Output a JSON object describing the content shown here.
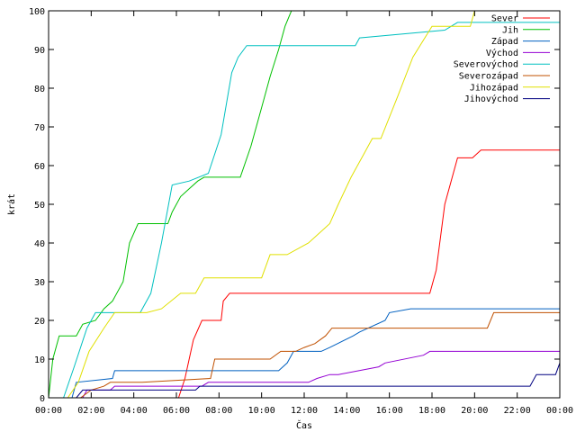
{
  "chart_data": {
    "type": "line",
    "title": "",
    "xlabel": "Čas",
    "ylabel": "krát",
    "xlim": [
      0,
      24
    ],
    "ylim": [
      0,
      100
    ],
    "x_ticks": [
      {
        "value": 0,
        "label": "00:00"
      },
      {
        "value": 2,
        "label": "02:00"
      },
      {
        "value": 4,
        "label": "04:00"
      },
      {
        "value": 6,
        "label": "06:00"
      },
      {
        "value": 8,
        "label": "08:00"
      },
      {
        "value": 10,
        "label": "10:00"
      },
      {
        "value": 12,
        "label": "12:00"
      },
      {
        "value": 14,
        "label": "14:00"
      },
      {
        "value": 16,
        "label": "16:00"
      },
      {
        "value": 18,
        "label": "18:00"
      },
      {
        "value": 20,
        "label": "20:00"
      },
      {
        "value": 22,
        "label": "22:00"
      },
      {
        "value": 24,
        "label": "00:00"
      }
    ],
    "y_ticks": [
      0,
      10,
      20,
      30,
      40,
      50,
      60,
      70,
      80,
      90,
      100
    ],
    "grid": false,
    "legend_position": "top-right",
    "series": [
      {
        "name": "Sever",
        "color": "#ff0000",
        "x": [
          0,
          6.1,
          6.4,
          6.8,
          7.2,
          8.1,
          8.2,
          8.5,
          17.9,
          18.2,
          18.6,
          19.2,
          19.9,
          20.3,
          24
        ],
        "y": [
          0,
          0,
          5,
          15,
          20,
          20,
          25,
          27,
          27,
          33,
          50,
          62,
          62,
          64,
          64
        ]
      },
      {
        "name": "Jih",
        "color": "#00c000",
        "x": [
          0,
          0.2,
          0.5,
          1.3,
          1.6,
          2.2,
          2.6,
          3.0,
          3.5,
          3.8,
          4.2,
          5.6,
          5.8,
          6.2,
          6.6,
          7.0,
          7.3,
          8.3,
          9.0,
          9.5,
          10.0,
          10.4,
          10.8,
          11.1,
          11.4,
          24
        ],
        "y": [
          0,
          10,
          16,
          16,
          19,
          20,
          23,
          25,
          30,
          40,
          45,
          45,
          48,
          52,
          54,
          56,
          57,
          57,
          57,
          65,
          75,
          83,
          90,
          96,
          100,
          100
        ]
      },
      {
        "name": "Západ",
        "color": "#0060c0",
        "x": [
          0,
          1.1,
          1.3,
          3.0,
          3.1,
          10.8,
          11.2,
          11.5,
          12.8,
          13.2,
          14.3,
          14.6,
          15.8,
          16.0,
          17.0,
          24
        ],
        "y": [
          0,
          0,
          4,
          5,
          7,
          7,
          9,
          12,
          12,
          13,
          16,
          17,
          20,
          22,
          23,
          23
        ]
      },
      {
        "name": "Východ",
        "color": "#9400d3",
        "x": [
          0,
          1.6,
          1.8,
          2.9,
          3.1,
          7.2,
          7.5,
          12.2,
          12.6,
          13.2,
          13.6,
          15.5,
          15.8,
          17.6,
          17.9,
          24
        ],
        "y": [
          0,
          0,
          2,
          2,
          3,
          3,
          4,
          4,
          5,
          6,
          6,
          8,
          9,
          11,
          12,
          12
        ]
      },
      {
        "name": "Severovýchod",
        "color": "#00c0c0",
        "x": [
          0,
          0.7,
          1.2,
          1.8,
          2.2,
          4.3,
          4.8,
          5.3,
          5.8,
          6.6,
          7.5,
          8.1,
          8.6,
          8.9,
          9.3,
          14.4,
          14.6,
          18.6,
          19.2,
          24
        ],
        "y": [
          0,
          0,
          8,
          18,
          22,
          22,
          27,
          40,
          55,
          56,
          58,
          68,
          84,
          88,
          91,
          91,
          93,
          95,
          97,
          97
        ]
      },
      {
        "name": "Severozápad",
        "color": "#c05000",
        "x": [
          0,
          1.5,
          2.0,
          2.6,
          2.9,
          4.4,
          7.6,
          7.8,
          10.4,
          10.9,
          11.6,
          12.0,
          12.5,
          13.0,
          13.3,
          16.1,
          20.6,
          20.9,
          24
        ],
        "y": [
          0,
          0,
          2,
          3,
          4,
          4,
          5,
          10,
          10,
          12,
          12,
          13,
          14,
          16,
          18,
          18,
          18,
          22,
          22
        ]
      },
      {
        "name": "Jihozápad",
        "color": "#e0e000",
        "x": [
          0,
          0.9,
          1.4,
          1.9,
          2.6,
          3.1,
          4.6,
          5.3,
          6.2,
          6.9,
          7.3,
          10.0,
          10.2,
          10.4,
          11.2,
          12.2,
          13.2,
          13.6,
          14.2,
          14.8,
          15.2,
          15.6,
          16.4,
          17.1,
          18.0,
          19.8,
          20.0,
          24
        ],
        "y": [
          0,
          0,
          4,
          12,
          18,
          22,
          22,
          23,
          27,
          27,
          31,
          31,
          34,
          37,
          37,
          40,
          45,
          50,
          57,
          63,
          67,
          67,
          78,
          88,
          96,
          96,
          100,
          100
        ]
      },
      {
        "name": "Jihovýchod",
        "color": "#000080",
        "x": [
          0,
          1.3,
          1.6,
          6.9,
          7.1,
          22.6,
          22.9,
          23.8,
          24
        ],
        "y": [
          0,
          0,
          2,
          2,
          3,
          3,
          6,
          6,
          9
        ]
      }
    ]
  }
}
